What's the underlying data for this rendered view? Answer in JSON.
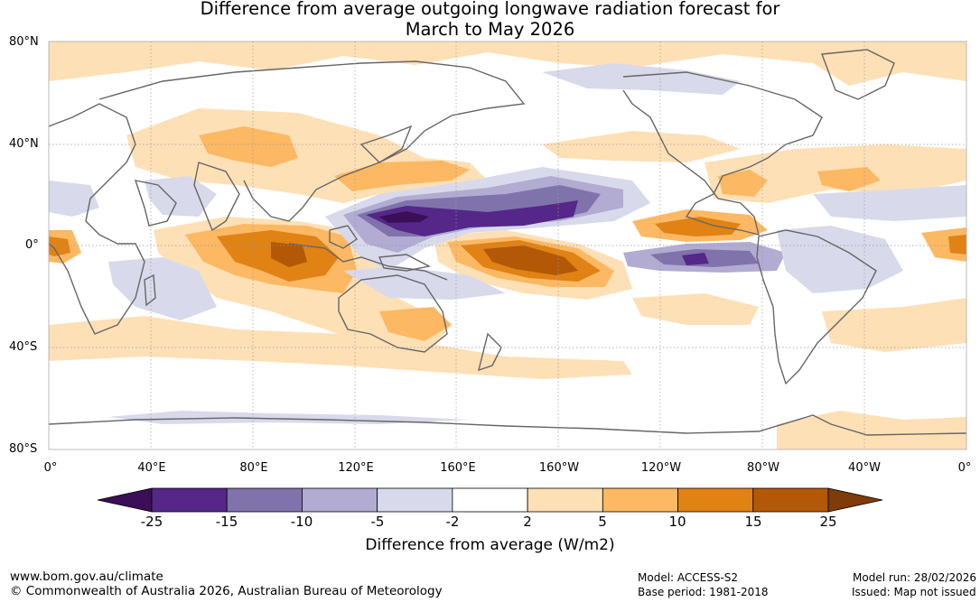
{
  "title_line1": "Difference from average outgoing longwave radiation forecast for",
  "title_line2": "March to May 2026",
  "lat_labels": [
    "80°N",
    "40°N",
    "0°",
    "40°S",
    "80°S"
  ],
  "lon_labels": [
    "0°",
    "40°E",
    "80°E",
    "120°E",
    "160°E",
    "160°W",
    "120°W",
    "80°W",
    "40°W",
    "0°"
  ],
  "colorbar": {
    "ticks": [
      "-25",
      "-15",
      "-10",
      "-5",
      "-2",
      "2",
      "5",
      "10",
      "15",
      "25"
    ],
    "colors": [
      "#3b0f57",
      "#542789",
      "#8073ac",
      "#b2abd2",
      "#d8daeb",
      "#ffffff",
      "#fee0b6",
      "#fdb863",
      "#e08214",
      "#b35806",
      "#7f3b08"
    ],
    "title": "Difference from average (W/m2)"
  },
  "footer": {
    "website": "www.bom.gov.au/climate",
    "copyright": "© Commonwealth of Australia 2026, Australian Bureau of Meteorology",
    "model": "Model: ACCESS-S2",
    "base_period": "Base period: 1981-2018",
    "model_run": "Model run: 28/02/2026",
    "issued": "Issued: Map not issued"
  }
}
